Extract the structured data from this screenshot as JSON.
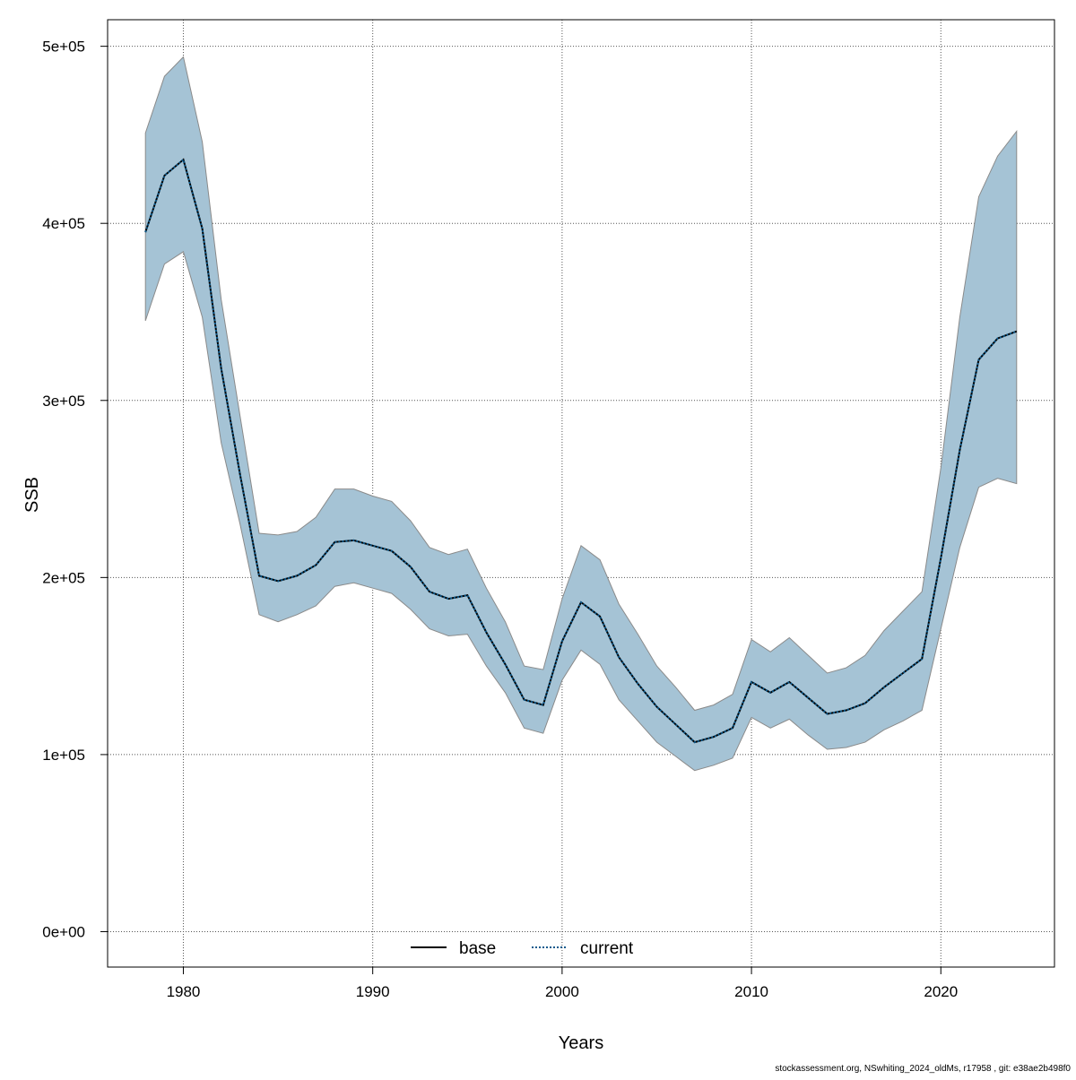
{
  "colors": {
    "band": "#a5c3d5",
    "band_edge": "#8a8a8a",
    "current_line": "#0d5a8c",
    "base_line": "#000000",
    "grid": "#555555",
    "axis": "#000000"
  },
  "footer": "stockassessment.org, NSwhiting_2024_oldMs, r17958 , git: e38ae2b498f0",
  "chart_data": {
    "type": "line",
    "xlabel": "Years",
    "ylabel": "SSB",
    "xlim": [
      1976,
      2026
    ],
    "ylim": [
      -20000,
      515000
    ],
    "x_ticks": [
      1980,
      1990,
      2000,
      2010,
      2020
    ],
    "y_ticks": [
      0,
      100000,
      200000,
      300000,
      400000,
      500000
    ],
    "y_tick_labels": [
      "0e+00",
      "1e+05",
      "2e+05",
      "3e+05",
      "4e+05",
      "5e+05"
    ],
    "grid": true,
    "legend": {
      "position": "bottom-center",
      "entries": [
        {
          "label": "base",
          "style": "solid"
        },
        {
          "label": "current",
          "style": "dotted"
        }
      ]
    },
    "x": [
      1978,
      1979,
      1980,
      1981,
      1982,
      1983,
      1984,
      1985,
      1986,
      1987,
      1988,
      1989,
      1990,
      1991,
      1992,
      1993,
      1994,
      1995,
      1996,
      1997,
      1998,
      1999,
      2000,
      2001,
      2002,
      2003,
      2004,
      2005,
      2006,
      2007,
      2008,
      2009,
      2010,
      2011,
      2012,
      2013,
      2014,
      2015,
      2016,
      2017,
      2018,
      2019,
      2020,
      2021,
      2022,
      2023,
      2024
    ],
    "series": [
      {
        "name": "current",
        "values": [
          395000,
          427000,
          436000,
          397000,
          318000,
          258000,
          201000,
          198000,
          201000,
          207000,
          220000,
          221000,
          218000,
          215000,
          206000,
          192000,
          188000,
          190000,
          169000,
          151000,
          131000,
          128000,
          164000,
          186000,
          178000,
          155000,
          140000,
          127000,
          117000,
          107000,
          110000,
          115000,
          141000,
          135000,
          141000,
          132000,
          123000,
          125000,
          129000,
          138000,
          146000,
          154000,
          211000,
          272000,
          323000,
          335000,
          339000
        ],
        "lower": [
          345000,
          377000,
          384000,
          347000,
          276000,
          230000,
          179000,
          175000,
          179000,
          184000,
          195000,
          197000,
          194000,
          191000,
          182000,
          171000,
          167000,
          168000,
          150000,
          135000,
          115000,
          112000,
          142000,
          159000,
          151000,
          131000,
          119000,
          107000,
          99000,
          91000,
          94000,
          98000,
          121000,
          115000,
          120000,
          111000,
          103000,
          104000,
          107000,
          114000,
          119000,
          125000,
          171000,
          217000,
          251000,
          256000,
          253000
        ],
        "upper": [
          451000,
          483000,
          494000,
          446000,
          357000,
          291000,
          225000,
          224000,
          226000,
          234000,
          250000,
          250000,
          246000,
          243000,
          232000,
          217000,
          213000,
          216000,
          194000,
          175000,
          150000,
          148000,
          188000,
          218000,
          210000,
          185000,
          168000,
          150000,
          138000,
          125000,
          128000,
          134000,
          165000,
          158000,
          166000,
          156000,
          146000,
          149000,
          156000,
          170000,
          181000,
          192000,
          262000,
          347000,
          415000,
          438000,
          452000
        ]
      }
    ]
  }
}
